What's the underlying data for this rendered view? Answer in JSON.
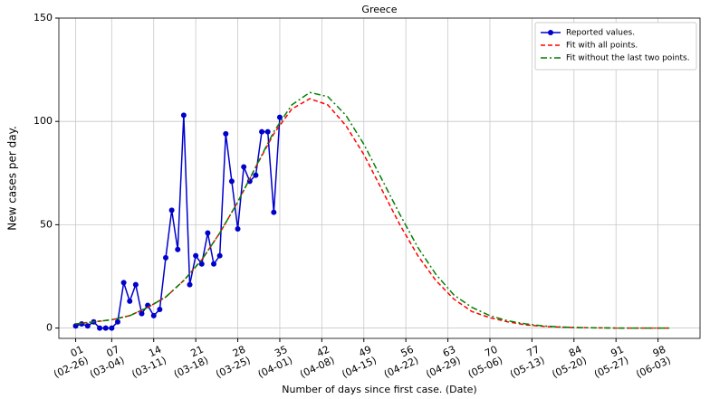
{
  "chart_data": {
    "type": "line",
    "title": "Greece",
    "xlabel": "Number of days since first case. (Date)",
    "ylabel": "New cases per day.",
    "xlim": [
      -1.8,
      105
    ],
    "ylim": [
      -5,
      150
    ],
    "yticks": [
      0,
      50,
      100,
      150
    ],
    "xticks": [
      {
        "value": 1,
        "label": "01\n(02-26)"
      },
      {
        "value": 7,
        "label": "07\n(03-04)"
      },
      {
        "value": 14,
        "label": "14\n(03-11)"
      },
      {
        "value": 21,
        "label": "21\n(03-18)"
      },
      {
        "value": 28,
        "label": "28\n(03-25)"
      },
      {
        "value": 35,
        "label": "35\n(04-01)"
      },
      {
        "value": 42,
        "label": "42\n(04-08)"
      },
      {
        "value": 49,
        "label": "49\n(04-15)"
      },
      {
        "value": 56,
        "label": "56\n(04-22)"
      },
      {
        "value": 63,
        "label": "63\n(04-29)"
      },
      {
        "value": 70,
        "label": "70\n(05-06)"
      },
      {
        "value": 77,
        "label": "77\n(05-13)"
      },
      {
        "value": 84,
        "label": "84\n(05-20)"
      },
      {
        "value": 91,
        "label": "91\n(05-27)"
      },
      {
        "value": 98,
        "label": "98\n(06-03)"
      }
    ],
    "grid": true,
    "legend": "upper right",
    "series": [
      {
        "name": "Reported values.",
        "color": "#0000cc",
        "linestyle": "solid",
        "marker": "o",
        "x": [
          1,
          2,
          3,
          4,
          5,
          6,
          7,
          8,
          9,
          10,
          11,
          12,
          13,
          14,
          15,
          16,
          17,
          18,
          19,
          20,
          21,
          22,
          23,
          24,
          25,
          26,
          27,
          28,
          29,
          30,
          31,
          32,
          33,
          34,
          35
        ],
        "values": [
          1,
          2,
          1,
          3,
          0,
          0,
          0,
          3,
          22,
          13,
          21,
          7,
          11,
          6,
          9,
          34,
          57,
          38,
          103,
          21,
          35,
          31,
          46,
          31,
          35,
          94,
          71,
          48,
          78,
          71,
          74,
          95,
          95,
          56,
          102
        ]
      },
      {
        "name": "Fit with all points.",
        "color": "#ff0000",
        "linestyle": "dashed",
        "x": [
          1,
          4,
          7,
          10,
          13,
          16,
          19,
          22,
          25,
          28,
          31,
          34,
          37,
          40,
          43,
          46,
          49,
          52,
          55,
          58,
          61,
          64,
          67,
          70,
          73,
          76,
          79,
          82,
          85,
          88,
          91,
          94,
          97,
          100
        ],
        "values": [
          2,
          3,
          4,
          6,
          10,
          15,
          23,
          33,
          46,
          61,
          78,
          94,
          106,
          111,
          108,
          98,
          84,
          67,
          50,
          35,
          23,
          14,
          8,
          5,
          3,
          1.5,
          0.8,
          0.4,
          0.2,
          0.1,
          0,
          0,
          0,
          0
        ]
      },
      {
        "name": "Fit without the last two points.",
        "color": "#008000",
        "linestyle": "dashdot",
        "x": [
          1,
          4,
          7,
          10,
          13,
          16,
          19,
          22,
          25,
          28,
          31,
          34,
          37,
          40,
          43,
          46,
          49,
          52,
          55,
          58,
          61,
          64,
          67,
          70,
          73,
          76,
          79,
          82,
          85,
          88,
          91,
          94,
          97,
          100
        ],
        "values": [
          2,
          3,
          4,
          6,
          10,
          15,
          23,
          33,
          46,
          61,
          78,
          95,
          108,
          114,
          112,
          103,
          89,
          72,
          55,
          39,
          26,
          16,
          10,
          6,
          3.5,
          2,
          1,
          0.5,
          0.2,
          0.1,
          0,
          0,
          0,
          0
        ]
      }
    ]
  }
}
